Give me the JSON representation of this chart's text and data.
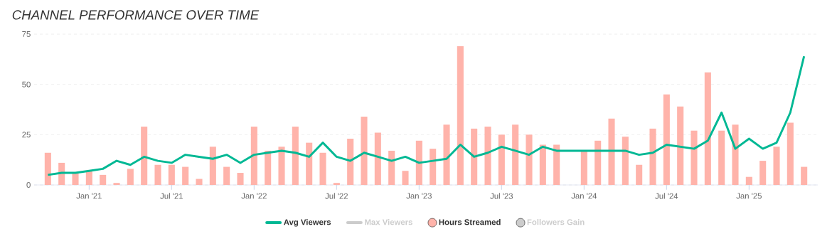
{
  "chart_data": {
    "type": "bar",
    "title": "CHANNEL PERFORMANCE OVER TIME",
    "x": [
      "2020-10",
      "2020-11",
      "2020-12",
      "2021-01",
      "2021-02",
      "2021-03",
      "2021-04",
      "2021-05",
      "2021-06",
      "2021-07",
      "2021-08",
      "2021-09",
      "2021-10",
      "2021-11",
      "2021-12",
      "2022-01",
      "2022-02",
      "2022-03",
      "2022-04",
      "2022-05",
      "2022-06",
      "2022-07",
      "2022-08",
      "2022-09",
      "2022-10",
      "2022-11",
      "2022-12",
      "2023-01",
      "2023-02",
      "2023-03",
      "2023-04",
      "2023-05",
      "2023-06",
      "2023-07",
      "2023-08",
      "2023-09",
      "2023-10",
      "2023-11",
      "2023-12",
      "2024-01",
      "2024-02",
      "2024-03",
      "2024-04",
      "2024-05",
      "2024-06",
      "2024-07",
      "2024-08",
      "2024-09",
      "2024-10",
      "2024-11",
      "2024-12",
      "2025-01",
      "2025-02",
      "2025-03",
      "2025-04",
      "2025-05"
    ],
    "series": [
      {
        "name": "Avg Viewers",
        "type": "line",
        "color": "#00b894",
        "values": [
          5,
          6,
          6,
          7,
          8,
          12,
          10,
          14,
          12,
          11,
          15,
          14,
          13,
          15,
          11,
          15,
          16,
          17,
          16,
          14,
          21,
          14,
          12,
          16,
          14,
          12,
          14,
          11,
          12,
          13,
          20,
          14,
          16,
          19,
          17,
          15,
          19,
          17,
          17,
          17,
          17,
          17,
          17,
          15,
          16,
          20,
          19,
          18,
          22,
          36,
          18,
          23,
          18,
          21,
          36,
          64
        ]
      },
      {
        "name": "Max Viewers",
        "type": "line",
        "color": "#cccccc",
        "values": [
          null,
          null,
          null,
          null,
          null,
          null,
          null,
          null,
          null,
          null,
          null,
          null,
          null,
          null,
          null,
          null,
          null,
          null,
          null,
          null,
          null,
          null,
          null,
          null,
          null,
          null,
          null,
          null,
          null,
          null,
          null,
          null,
          null,
          null,
          null,
          null,
          null,
          null,
          null,
          null,
          null,
          null,
          null,
          null,
          null,
          null,
          null,
          null,
          null,
          null,
          null,
          null,
          null,
          null,
          null,
          null
        ]
      },
      {
        "name": "Hours Streamed",
        "color": "#ffb3aa",
        "values": [
          16,
          11,
          6,
          7,
          5,
          1,
          8,
          29,
          10,
          10,
          9,
          3,
          19,
          9,
          6,
          29,
          17,
          19,
          29,
          21,
          16,
          1,
          23,
          34,
          26,
          17,
          7,
          22,
          18,
          30,
          69,
          28,
          29,
          25,
          30,
          25,
          20,
          20,
          null,
          17,
          22,
          33,
          24,
          10,
          28,
          45,
          39,
          27,
          56,
          27,
          30,
          4,
          12,
          19,
          31,
          9
        ]
      },
      {
        "name": "Followers Gain",
        "color": "#cccccc",
        "values": [
          null,
          null,
          null,
          null,
          null,
          null,
          null,
          null,
          null,
          null,
          null,
          null,
          null,
          null,
          null,
          null,
          null,
          null,
          null,
          null,
          null,
          null,
          null,
          null,
          null,
          null,
          null,
          null,
          null,
          null,
          null,
          null,
          null,
          null,
          null,
          null,
          null,
          null,
          null,
          null,
          null,
          null,
          null,
          null,
          null,
          null,
          null,
          null,
          null,
          null,
          null,
          null,
          null,
          null,
          null,
          null
        ]
      }
    ],
    "xlim": [
      "2020-09",
      "2025-06"
    ],
    "xticks": [
      {
        "value": "2021-01",
        "label": "Jan '21"
      },
      {
        "value": "2021-07",
        "label": "Jul '21"
      },
      {
        "value": "2022-01",
        "label": "Jan '22"
      },
      {
        "value": "2022-07",
        "label": "Jul '22"
      },
      {
        "value": "2023-01",
        "label": "Jan '23"
      },
      {
        "value": "2023-07",
        "label": "Jul '23"
      },
      {
        "value": "2024-01",
        "label": "Jan '24"
      },
      {
        "value": "2024-07",
        "label": "Jul '24"
      },
      {
        "value": "2025-01",
        "label": "Jan '25"
      }
    ],
    "ylim": [
      0,
      75
    ],
    "yticks": [
      0,
      25,
      50,
      75
    ],
    "grid": "y",
    "legend": "bottom",
    "marker": "none",
    "line_style": "solid"
  }
}
